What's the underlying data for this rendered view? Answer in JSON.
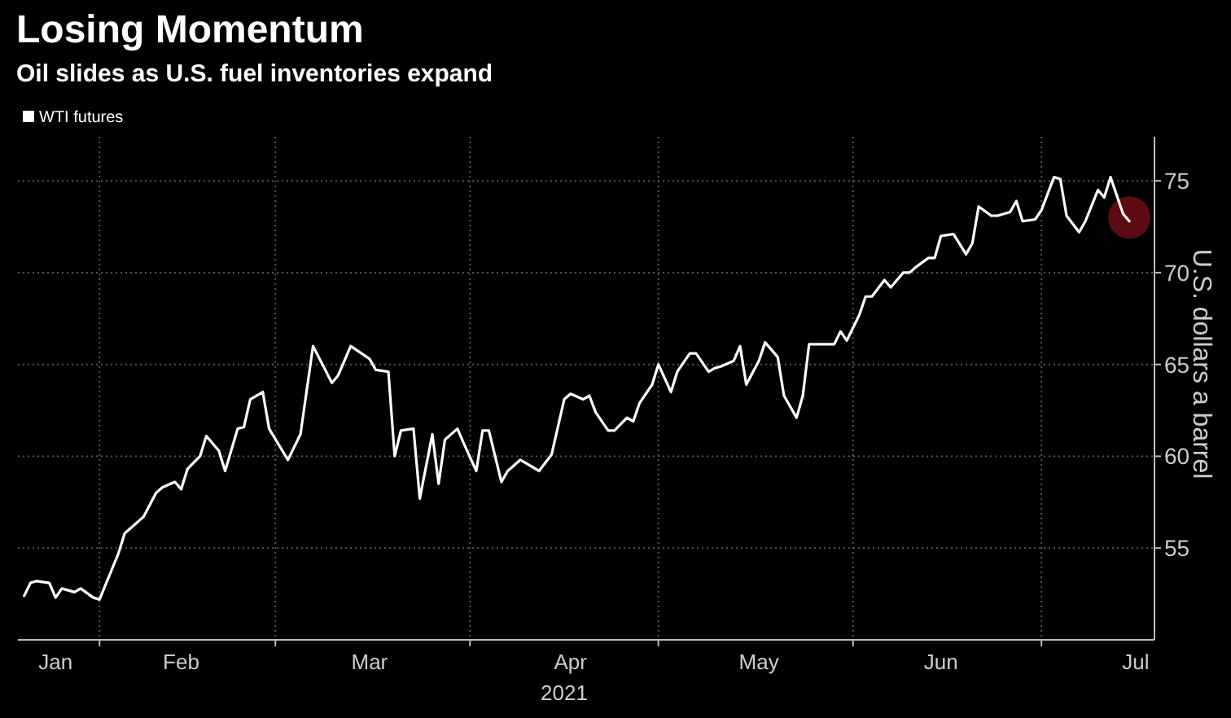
{
  "chart_data": {
    "type": "line",
    "title": "Losing Momentum",
    "subtitle": "Oil slides as U.S. fuel inventories expand",
    "xlabel": "2021",
    "ylabel": "U.S. dollars a barrel",
    "xlim": [
      "2021-01-19",
      "2021-07-19"
    ],
    "ylim": [
      50,
      77.4
    ],
    "yticks": [
      55,
      60,
      65,
      70,
      75
    ],
    "xticks": [
      {
        "value": "2021-01-25",
        "label": "Jan"
      },
      {
        "value": "2021-02-01",
        "label": null
      },
      {
        "value": "2021-02-14",
        "label": "Feb"
      },
      {
        "value": "2021-03-01",
        "label": null
      },
      {
        "value": "2021-03-16",
        "label": "Mar"
      },
      {
        "value": "2021-04-01",
        "label": null
      },
      {
        "value": "2021-04-17",
        "label": "Apr"
      },
      {
        "value": "2021-05-01",
        "label": null
      },
      {
        "value": "2021-05-17",
        "label": "May"
      },
      {
        "value": "2021-06-01",
        "label": null
      },
      {
        "value": "2021-06-15",
        "label": "Jun"
      },
      {
        "value": "2021-07-01",
        "label": null
      },
      {
        "value": "2021-07-16",
        "label": "Jul"
      }
    ],
    "grid": true,
    "legend": "top left",
    "series": [
      {
        "name": "WTI futures",
        "color": "#ffffff",
        "x": [
          "2021-01-20",
          "2021-01-21",
          "2021-01-22",
          "2021-01-24",
          "2021-01-25",
          "2021-01-26",
          "2021-01-28",
          "2021-01-29",
          "2021-01-31",
          "2021-02-01",
          "2021-02-04",
          "2021-02-05",
          "2021-02-08",
          "2021-02-10",
          "2021-02-11",
          "2021-02-13",
          "2021-02-14",
          "2021-02-15",
          "2021-02-17",
          "2021-02-18",
          "2021-02-20",
          "2021-02-21",
          "2021-02-23",
          "2021-02-24",
          "2021-02-25",
          "2021-02-27",
          "2021-02-28",
          "2021-03-03",
          "2021-03-05",
          "2021-03-07",
          "2021-03-10",
          "2021-03-11",
          "2021-03-13",
          "2021-03-16",
          "2021-03-17",
          "2021-03-19",
          "2021-03-20",
          "2021-03-21",
          "2021-03-23",
          "2021-03-24",
          "2021-03-26",
          "2021-03-27",
          "2021-03-28",
          "2021-03-30",
          "2021-03-31",
          "2021-04-02",
          "2021-04-03",
          "2021-04-04",
          "2021-04-06",
          "2021-04-07",
          "2021-04-09",
          "2021-04-10",
          "2021-04-12",
          "2021-04-14",
          "2021-04-16",
          "2021-04-17",
          "2021-04-19",
          "2021-04-20",
          "2021-04-21",
          "2021-04-23",
          "2021-04-24",
          "2021-04-26",
          "2021-04-27",
          "2021-04-28",
          "2021-04-30",
          "2021-05-01",
          "2021-05-03",
          "2021-05-04",
          "2021-05-06",
          "2021-05-07",
          "2021-05-09",
          "2021-05-10",
          "2021-05-11",
          "2021-05-13",
          "2021-05-14",
          "2021-05-15",
          "2021-05-17",
          "2021-05-18",
          "2021-05-20",
          "2021-05-21",
          "2021-05-23",
          "2021-05-24",
          "2021-05-25",
          "2021-05-27",
          "2021-05-29",
          "2021-05-30",
          "2021-05-31",
          "2021-06-02",
          "2021-06-03",
          "2021-06-04",
          "2021-06-06",
          "2021-06-07",
          "2021-06-09",
          "2021-06-10",
          "2021-06-11",
          "2021-06-13",
          "2021-06-14",
          "2021-06-15",
          "2021-06-17",
          "2021-06-19",
          "2021-06-20",
          "2021-06-21",
          "2021-06-23",
          "2021-06-24",
          "2021-06-26",
          "2021-06-27",
          "2021-06-28",
          "2021-06-30",
          "2021-07-01",
          "2021-07-03",
          "2021-07-04",
          "2021-07-05",
          "2021-07-07",
          "2021-07-08",
          "2021-07-10",
          "2021-07-11",
          "2021-07-12",
          "2021-07-14",
          "2021-07-15"
        ],
        "values": [
          52.4,
          53.1,
          53.2,
          53.1,
          52.3,
          52.8,
          52.6,
          52.8,
          52.3,
          52.2,
          54.7,
          55.8,
          56.7,
          58.0,
          58.3,
          58.6,
          58.2,
          59.3,
          60.0,
          61.1,
          60.3,
          59.2,
          61.5,
          61.6,
          63.1,
          63.5,
          61.5,
          59.8,
          61.2,
          66.0,
          64.0,
          64.4,
          66.0,
          65.3,
          64.7,
          64.6,
          60.0,
          61.4,
          61.5,
          57.7,
          61.2,
          58.5,
          60.9,
          61.5,
          60.7,
          59.2,
          61.4,
          61.4,
          58.6,
          59.2,
          59.8,
          59.6,
          59.2,
          60.1,
          63.1,
          63.4,
          63.1,
          63.3,
          62.4,
          61.4,
          61.4,
          62.1,
          61.9,
          62.9,
          63.9,
          65.0,
          63.5,
          64.6,
          65.6,
          65.6,
          64.6,
          64.8,
          64.9,
          65.2,
          66.0,
          63.9,
          65.2,
          66.2,
          65.4,
          63.3,
          62.1,
          63.3,
          66.1,
          66.1,
          66.1,
          66.8,
          66.3,
          67.7,
          68.7,
          68.7,
          69.6,
          69.2,
          70.0,
          70.0,
          70.3,
          70.8,
          70.8,
          72.0,
          72.1,
          71.0,
          71.6,
          73.6,
          73.1,
          73.1,
          73.3,
          73.9,
          72.8,
          72.9,
          73.4,
          75.2,
          75.1,
          73.1,
          72.2,
          72.8,
          74.5,
          74.1,
          75.2,
          73.2,
          72.8
        ]
      },
      {
        "type": "scatter",
        "color": "#6b0d14",
        "marker": "circle",
        "x": [
          "2021-07-15"
        ],
        "values": [
          73.0
        ]
      }
    ]
  }
}
